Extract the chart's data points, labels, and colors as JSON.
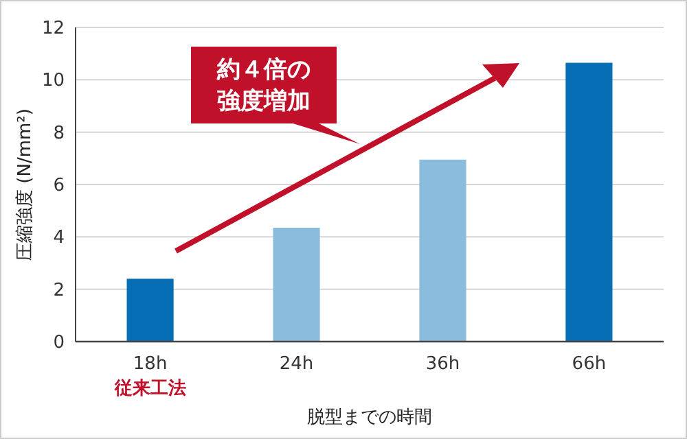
{
  "chart_data": {
    "type": "bar",
    "categories": [
      "18h",
      "24h",
      "36h",
      "66h"
    ],
    "values": [
      2.4,
      4.35,
      6.95,
      10.65
    ],
    "colors": [
      "#066eb4",
      "#8bbcdd",
      "#8bbcdd",
      "#066eb4"
    ],
    "xlabel": "脱型までの時間",
    "ylabel": "圧縮強度 (N/mm²)",
    "ylim": [
      0,
      12
    ],
    "yticks": [
      0,
      2,
      4,
      6,
      8,
      10,
      12
    ],
    "grid": "y",
    "annotations": [
      "約４倍の強度増加",
      "従来工法"
    ]
  }
}
